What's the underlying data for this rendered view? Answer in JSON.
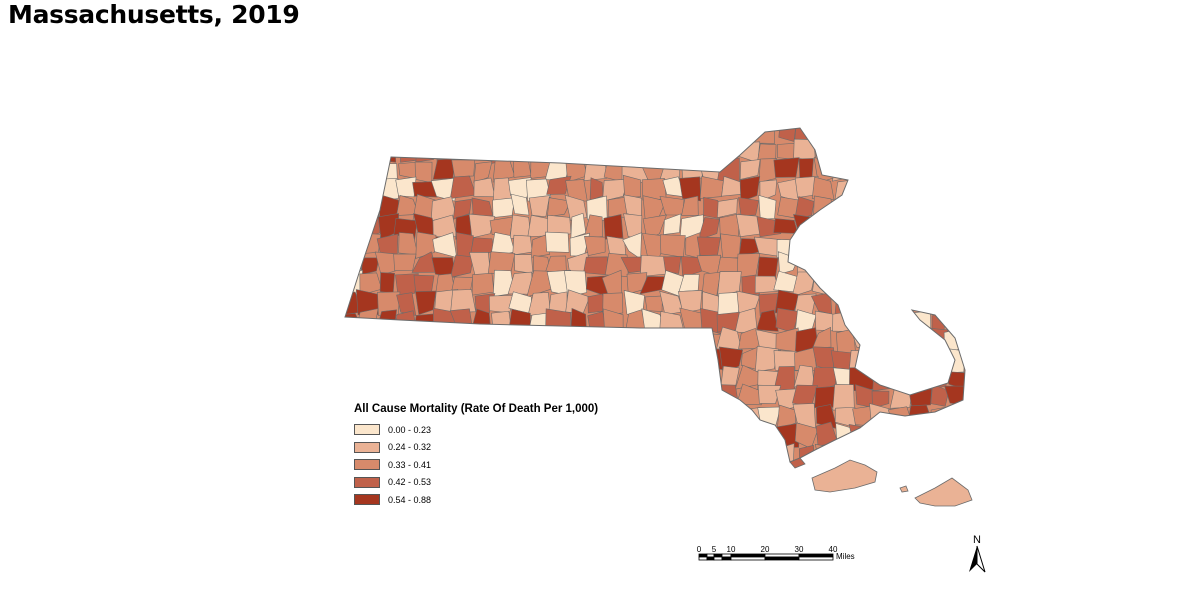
{
  "title": "Massachusetts, 2019",
  "legend": {
    "title": "All Cause Mortality (Rate Of Death Per 1,000)",
    "classes": [
      {
        "label": "0.00 - 0.23",
        "color": "#fbe6cc"
      },
      {
        "label": "0.24 - 0.32",
        "color": "#eab295"
      },
      {
        "label": "0.33 - 0.41",
        "color": "#d78a6b"
      },
      {
        "label": "0.42 - 0.53",
        "color": "#c0614a"
      },
      {
        "label": "0.54 - 0.88",
        "color": "#a5361f"
      }
    ]
  },
  "scale_bar": {
    "ticks": [
      "0",
      "5",
      "10",
      "20",
      "30",
      "40"
    ],
    "unit": "Miles"
  },
  "north_arrow": {
    "label": "N"
  },
  "map": {
    "region": "Massachusetts",
    "boundary_color": "#6b6b6b",
    "feature": "municipalities shaded by mortality class"
  }
}
